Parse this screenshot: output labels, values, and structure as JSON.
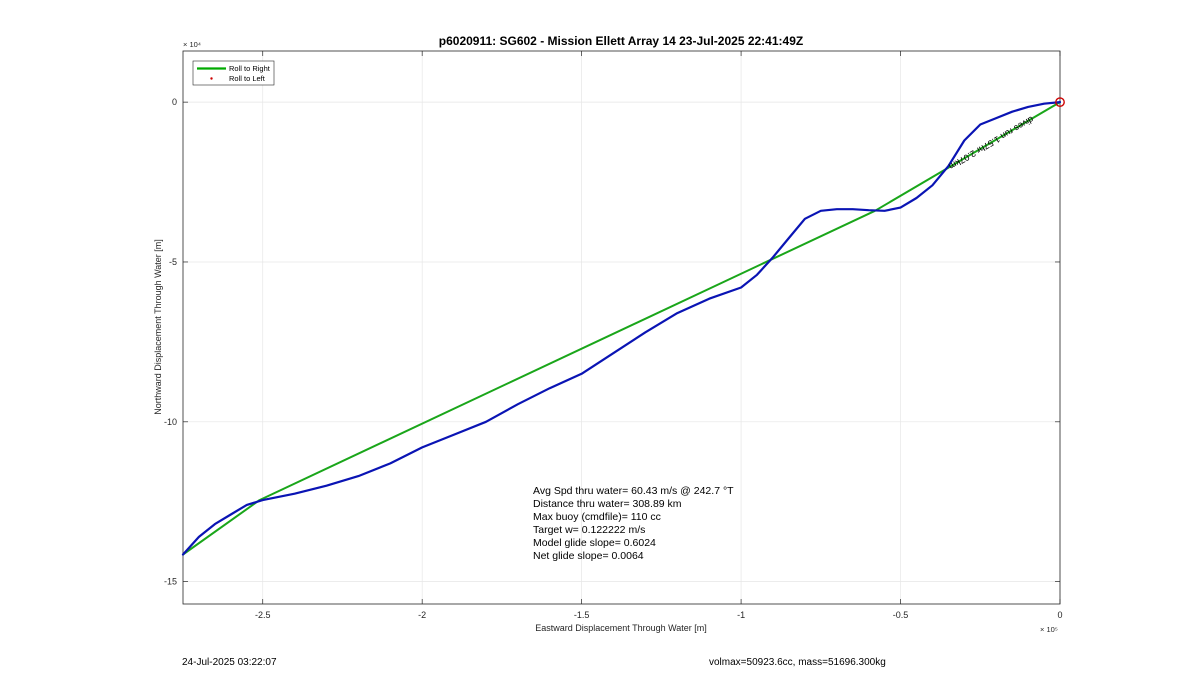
{
  "chart_data": {
    "type": "line",
    "title": "p6020911: SG602 - Mission Ellett Array 14 23-Jul-2025 22:41:49Z",
    "xlabel": "Eastward Displacement Through Water [m]",
    "ylabel": "Northward Displacement Through Water [m]",
    "x_exponent_label": "× 10⁵",
    "y_exponent_label": "× 10⁴",
    "xlim": [
      -2.75,
      0.0
    ],
    "ylim": [
      -15.7,
      1.6
    ],
    "xticks": [
      -2.5,
      -2,
      -1.5,
      -1,
      -0.5,
      0
    ],
    "xtick_labels": [
      "-2.5",
      "-2",
      "-1.5",
      "-1",
      "-0.5",
      "0"
    ],
    "yticks": [
      0,
      -5,
      -10,
      -15
    ],
    "ytick_labels": [
      "0",
      "-5",
      "-10",
      "-15"
    ],
    "grid": true,
    "legend": {
      "position": "top-left",
      "entries": [
        {
          "label": "Roll to Right",
          "color": "#00aa00",
          "style": "line"
        },
        {
          "label": "Roll to Left",
          "color": "#cc0000",
          "style": "dot"
        }
      ]
    },
    "series": [
      {
        "name": "Roll to Right",
        "color": "#1aa61a",
        "x": [
          -2.75,
          -2.51,
          -0.58,
          0.0
        ],
        "y": [
          -14.15,
          -12.45,
          -3.4,
          0.0
        ]
      },
      {
        "color": "#0a14b4",
        "x": [
          -2.75,
          -2.7,
          -2.65,
          -2.6,
          -2.55,
          -2.5,
          -2.4,
          -2.3,
          -2.2,
          -2.1,
          -2.0,
          -1.9,
          -1.8,
          -1.7,
          -1.6,
          -1.5,
          -1.4,
          -1.3,
          -1.2,
          -1.1,
          -1.0,
          -0.95,
          -0.9,
          -0.85,
          -0.8,
          -0.75,
          -0.7,
          -0.65,
          -0.6,
          -0.55,
          -0.5,
          -0.45,
          -0.4,
          -0.35,
          -0.3,
          -0.25,
          -0.2,
          -0.15,
          -0.1,
          -0.05,
          0.0
        ],
        "y": [
          -14.15,
          -13.6,
          -13.2,
          -12.9,
          -12.6,
          -12.45,
          -12.25,
          -12.0,
          -11.7,
          -11.3,
          -10.8,
          -10.4,
          -10.0,
          -9.45,
          -8.95,
          -8.5,
          -7.85,
          -7.2,
          -6.6,
          -6.15,
          -5.8,
          -5.4,
          -4.85,
          -4.25,
          -3.65,
          -3.4,
          -3.35,
          -3.35,
          -3.38,
          -3.4,
          -3.3,
          -3.0,
          -2.6,
          -2.0,
          -1.2,
          -0.7,
          -0.5,
          -0.3,
          -0.15,
          -0.05,
          0.0
        ]
      }
    ],
    "end_marker": {
      "x": 0.0,
      "y": 0.0,
      "color": "#cc0000"
    },
    "segment_annotation": "dives run 1.57hr 2.07km",
    "stats": [
      "Avg Spd thru water= 60.43 m/s @ 242.7 °T",
      "Distance thru water= 308.89 km",
      "Max buoy (cmdfile)= 110 cc",
      "Target w= 0.122222 m/s",
      "Model glide slope= 0.6024",
      "Net glide slope= 0.0064"
    ]
  },
  "footer": {
    "left": "24-Jul-2025 03:22:07",
    "right": "volmax=50923.6cc, mass=51696.300kg"
  }
}
